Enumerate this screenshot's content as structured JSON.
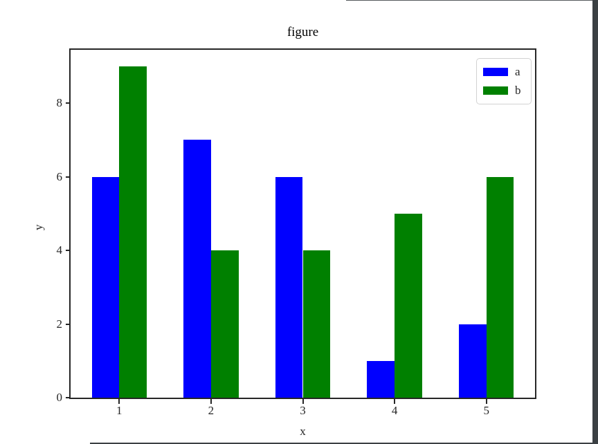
{
  "window": {
    "border_color": "#3b4043"
  },
  "chart_data": {
    "type": "bar",
    "title": "figure",
    "xlabel": "x",
    "ylabel": "y",
    "categories": [
      "1",
      "2",
      "3",
      "4",
      "5"
    ],
    "series": [
      {
        "name": "a",
        "color": "#0000ff",
        "values": [
          6,
          7,
          6,
          1,
          2
        ]
      },
      {
        "name": "b",
        "color": "#008000",
        "values": [
          9,
          4,
          4,
          5,
          6
        ]
      }
    ],
    "yticks": [
      0,
      2,
      4,
      6,
      8
    ],
    "ylim": [
      0,
      9.45
    ],
    "xlim": [
      0.47,
      5.53
    ],
    "bar_width_units": 0.3,
    "grid": false,
    "legend_position": "upper right",
    "plot_background": "#ffffff",
    "axis_color": "#262626"
  }
}
